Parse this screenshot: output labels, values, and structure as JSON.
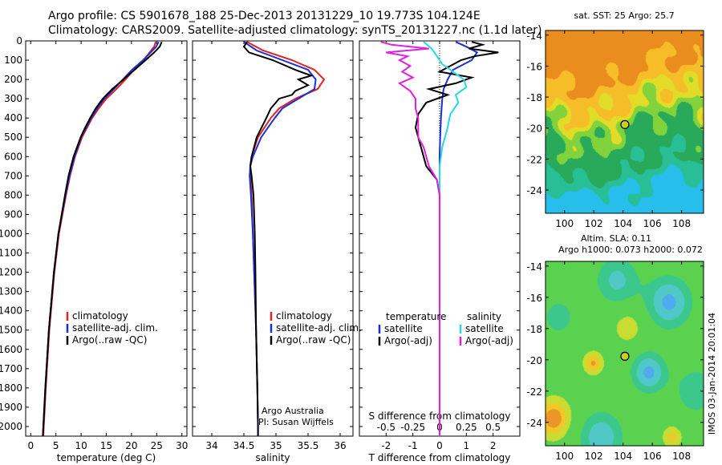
{
  "header": {
    "line1": "Argo profile: CS 5901678_188 25-Dec-2013 20131229_10 19.773S 104.124E",
    "line2": "Climatology: CARS2009. Satellite-adjusted climatology: synTS_20131227.nc (1.1d later)"
  },
  "colors": {
    "climatology": "#e8201c",
    "satellite": "#1a2fd8",
    "argo": "#000000",
    "salinity_sat": "#28d8e8",
    "salinity_argo": "#e020e0"
  },
  "depth_axis": {
    "ylim": [
      2050,
      0
    ],
    "ticks": [
      0,
      100,
      200,
      300,
      400,
      500,
      600,
      700,
      800,
      900,
      1000,
      1100,
      1200,
      1300,
      1400,
      1500,
      1600,
      1700,
      1800,
      1900,
      2000
    ]
  },
  "chart_data": [
    {
      "type": "line",
      "xlabel": "temperature (deg C)",
      "xlim": [
        -1,
        31
      ],
      "xticks": [
        0,
        5,
        10,
        15,
        20,
        25,
        30
      ],
      "legend": [
        "climatology",
        "satellite-adj. clim.",
        "Argo(..raw -QC)"
      ],
      "series": [
        {
          "name": "climatology",
          "depth": [
            5,
            30,
            60,
            100,
            150,
            200,
            250,
            300,
            350,
            400,
            450,
            500,
            600,
            700,
            800,
            1000,
            1200,
            1500,
            1800,
            2000,
            2050
          ],
          "values": [
            24.8,
            24.5,
            23.6,
            22.5,
            20.5,
            18.8,
            17.0,
            15.0,
            13.5,
            12.2,
            11.2,
            10.2,
            8.8,
            7.8,
            7.0,
            5.6,
            4.7,
            3.7,
            3.0,
            2.6,
            2.5
          ]
        },
        {
          "name": "satellite-adj. clim.",
          "depth": [
            5,
            30,
            60,
            100,
            150,
            200,
            250,
            300,
            350,
            400,
            450,
            500,
            600,
            700,
            800,
            1000,
            1200,
            1500,
            1800,
            2000,
            2050
          ],
          "values": [
            25.4,
            24.9,
            23.8,
            22.3,
            20.1,
            18.3,
            16.5,
            14.6,
            13.2,
            12.0,
            11.0,
            10.0,
            8.7,
            7.7,
            6.9,
            5.5,
            4.6,
            3.6,
            2.9,
            2.5,
            2.4
          ]
        },
        {
          "name": "Argo(..raw -QC)",
          "depth": [
            5,
            30,
            60,
            100,
            150,
            200,
            250,
            300,
            350,
            400,
            450,
            500,
            600,
            700,
            800,
            1000,
            1200,
            1500,
            1800,
            2000,
            2050
          ],
          "values": [
            26.0,
            25.6,
            24.5,
            22.8,
            20.6,
            18.4,
            16.2,
            14.3,
            12.9,
            11.8,
            10.8,
            9.9,
            8.5,
            7.5,
            6.8,
            5.5,
            4.6,
            3.6,
            2.9,
            2.5,
            2.4
          ]
        }
      ]
    },
    {
      "type": "line",
      "xlabel": "salinity",
      "xlim": [
        33.7,
        36.2
      ],
      "xticks": [
        34,
        34.5,
        35,
        35.5,
        36
      ],
      "legend": [
        "climatology",
        "satellite-adj. clim.",
        "Argo(..raw -QC)"
      ],
      "annotation": [
        "Argo Australia",
        "PI: Susan Wijffels"
      ],
      "series": [
        {
          "name": "climatology",
          "depth": [
            5,
            50,
            100,
            150,
            200,
            250,
            300,
            350,
            400,
            500,
            600,
            650,
            700,
            800,
            1000,
            1200,
            1500,
            1800,
            2000,
            2050
          ],
          "values": [
            34.55,
            34.8,
            35.25,
            35.6,
            35.75,
            35.65,
            35.3,
            35.05,
            34.92,
            34.72,
            34.62,
            34.6,
            34.6,
            34.62,
            34.64,
            34.66,
            34.69,
            34.71,
            34.72,
            34.72
          ]
        },
        {
          "name": "satellite-adj. clim.",
          "depth": [
            5,
            50,
            100,
            150,
            200,
            250,
            300,
            350,
            400,
            500,
            600,
            650,
            700,
            800,
            1000,
            1200,
            1500,
            1800,
            2000,
            2050
          ],
          "values": [
            34.5,
            34.7,
            35.1,
            35.5,
            35.62,
            35.6,
            35.35,
            35.1,
            34.98,
            34.77,
            34.64,
            34.6,
            34.59,
            34.61,
            34.64,
            34.66,
            34.69,
            34.71,
            34.72,
            34.72
          ]
        },
        {
          "name": "Argo(..raw -QC)",
          "depth": [
            5,
            30,
            60,
            100,
            150,
            180,
            200,
            230,
            260,
            280,
            300,
            350,
            400,
            500,
            600,
            650,
            700,
            800,
            1000,
            1200,
            1500,
            1800,
            2000,
            2050
          ],
          "values": [
            34.55,
            34.5,
            34.58,
            34.95,
            35.3,
            35.55,
            35.35,
            35.5,
            35.3,
            35.25,
            35.05,
            34.92,
            34.85,
            34.7,
            34.62,
            34.6,
            34.62,
            34.65,
            34.67,
            34.68,
            34.69,
            34.71,
            34.72,
            34.72
          ]
        }
      ]
    },
    {
      "type": "line",
      "xlabel": "T difference from climatology",
      "xlabel_top": "S difference from climatology",
      "xlim": [
        -3,
        3
      ],
      "xticks": [
        -2,
        -1,
        0,
        1,
        2
      ],
      "xticks_top_labels": [
        "-0.5",
        "-0.25",
        "0",
        "0.25",
        "0.5"
      ],
      "xticks_top_values": [
        -2,
        -1,
        0,
        1,
        2
      ],
      "legend_left_title": "temperature",
      "legend_right_title": "salinity",
      "legend": [
        "satellite",
        "Argo(-adj)",
        "satellite",
        "Argo(-adj)"
      ],
      "series": [
        {
          "name": "temperature satellite",
          "depth": [
            5,
            30,
            60,
            100,
            150,
            200,
            250,
            300,
            400,
            500,
            600,
            800,
            1000,
            1500,
            2000,
            2050
          ],
          "values": [
            0.6,
            1.0,
            1.4,
            1.2,
            0.5,
            0.3,
            0.15,
            0.1,
            0.05,
            0.02,
            0.0,
            0.0,
            0.0,
            0.0,
            0.0,
            0.0
          ]
        },
        {
          "name": "temperature Argo(-adj)",
          "depth": [
            5,
            20,
            40,
            60,
            80,
            100,
            130,
            160,
            190,
            220,
            250,
            280,
            320,
            380,
            450,
            550,
            650,
            720,
            800,
            900,
            1000,
            1500,
            2000,
            2050
          ],
          "values": [
            1.2,
            1.6,
            1.1,
            2.2,
            1.3,
            0.8,
            0.4,
            0.0,
            1.2,
            0.6,
            -0.4,
            0.3,
            -0.5,
            -0.8,
            -0.9,
            -0.7,
            -0.5,
            -0.1,
            0.0,
            0.0,
            0.0,
            0.0,
            0.0,
            0.0
          ]
        },
        {
          "name": "salinity satellite",
          "depth": [
            5,
            40,
            80,
            120,
            160,
            200,
            240,
            280,
            320,
            380,
            450,
            550,
            650,
            800,
            1000,
            1500,
            2000,
            2050
          ],
          "values": [
            -0.6,
            -0.3,
            -0.1,
            0.1,
            0.5,
            0.9,
            1.0,
            0.6,
            0.7,
            0.4,
            0.3,
            0.1,
            0.0,
            0.0,
            0.0,
            0.0,
            0.0,
            0.0
          ]
        },
        {
          "name": "salinity Argo(-adj)",
          "depth": [
            5,
            20,
            40,
            60,
            80,
            100,
            130,
            160,
            190,
            220,
            260,
            300,
            350,
            400,
            500,
            550,
            650,
            720,
            800,
            900,
            1000,
            1500,
            2000,
            2050
          ],
          "values": [
            -2.2,
            -1.8,
            -0.4,
            -2.0,
            -1.2,
            -1.5,
            -1.1,
            -1.4,
            -1.0,
            -1.5,
            -1.1,
            -0.9,
            -0.9,
            -0.8,
            -0.8,
            -0.6,
            -0.4,
            -0.1,
            0.0,
            0.0,
            0.0,
            0.0,
            0.0,
            0.0
          ]
        }
      ]
    }
  ],
  "maps": {
    "sst_title": "sat. SST: 25 Argo: 25.7",
    "sla_title1": "Altim. SLA: 0.11",
    "sla_title2": "Argo h1000: 0.073 h2000: 0.072",
    "lat_ticks": [
      -14,
      -16,
      -18,
      -20,
      -22,
      -24
    ],
    "lon_ticks": [
      100,
      102,
      104,
      106,
      108
    ],
    "lat_range": [
      -25.5,
      -13.7
    ],
    "lon_range": [
      98.7,
      109.5
    ],
    "float_position": {
      "lat": -19.773,
      "lon": 104.124
    },
    "credit": "IMOS 03-Jan-2014 20:01:04"
  }
}
